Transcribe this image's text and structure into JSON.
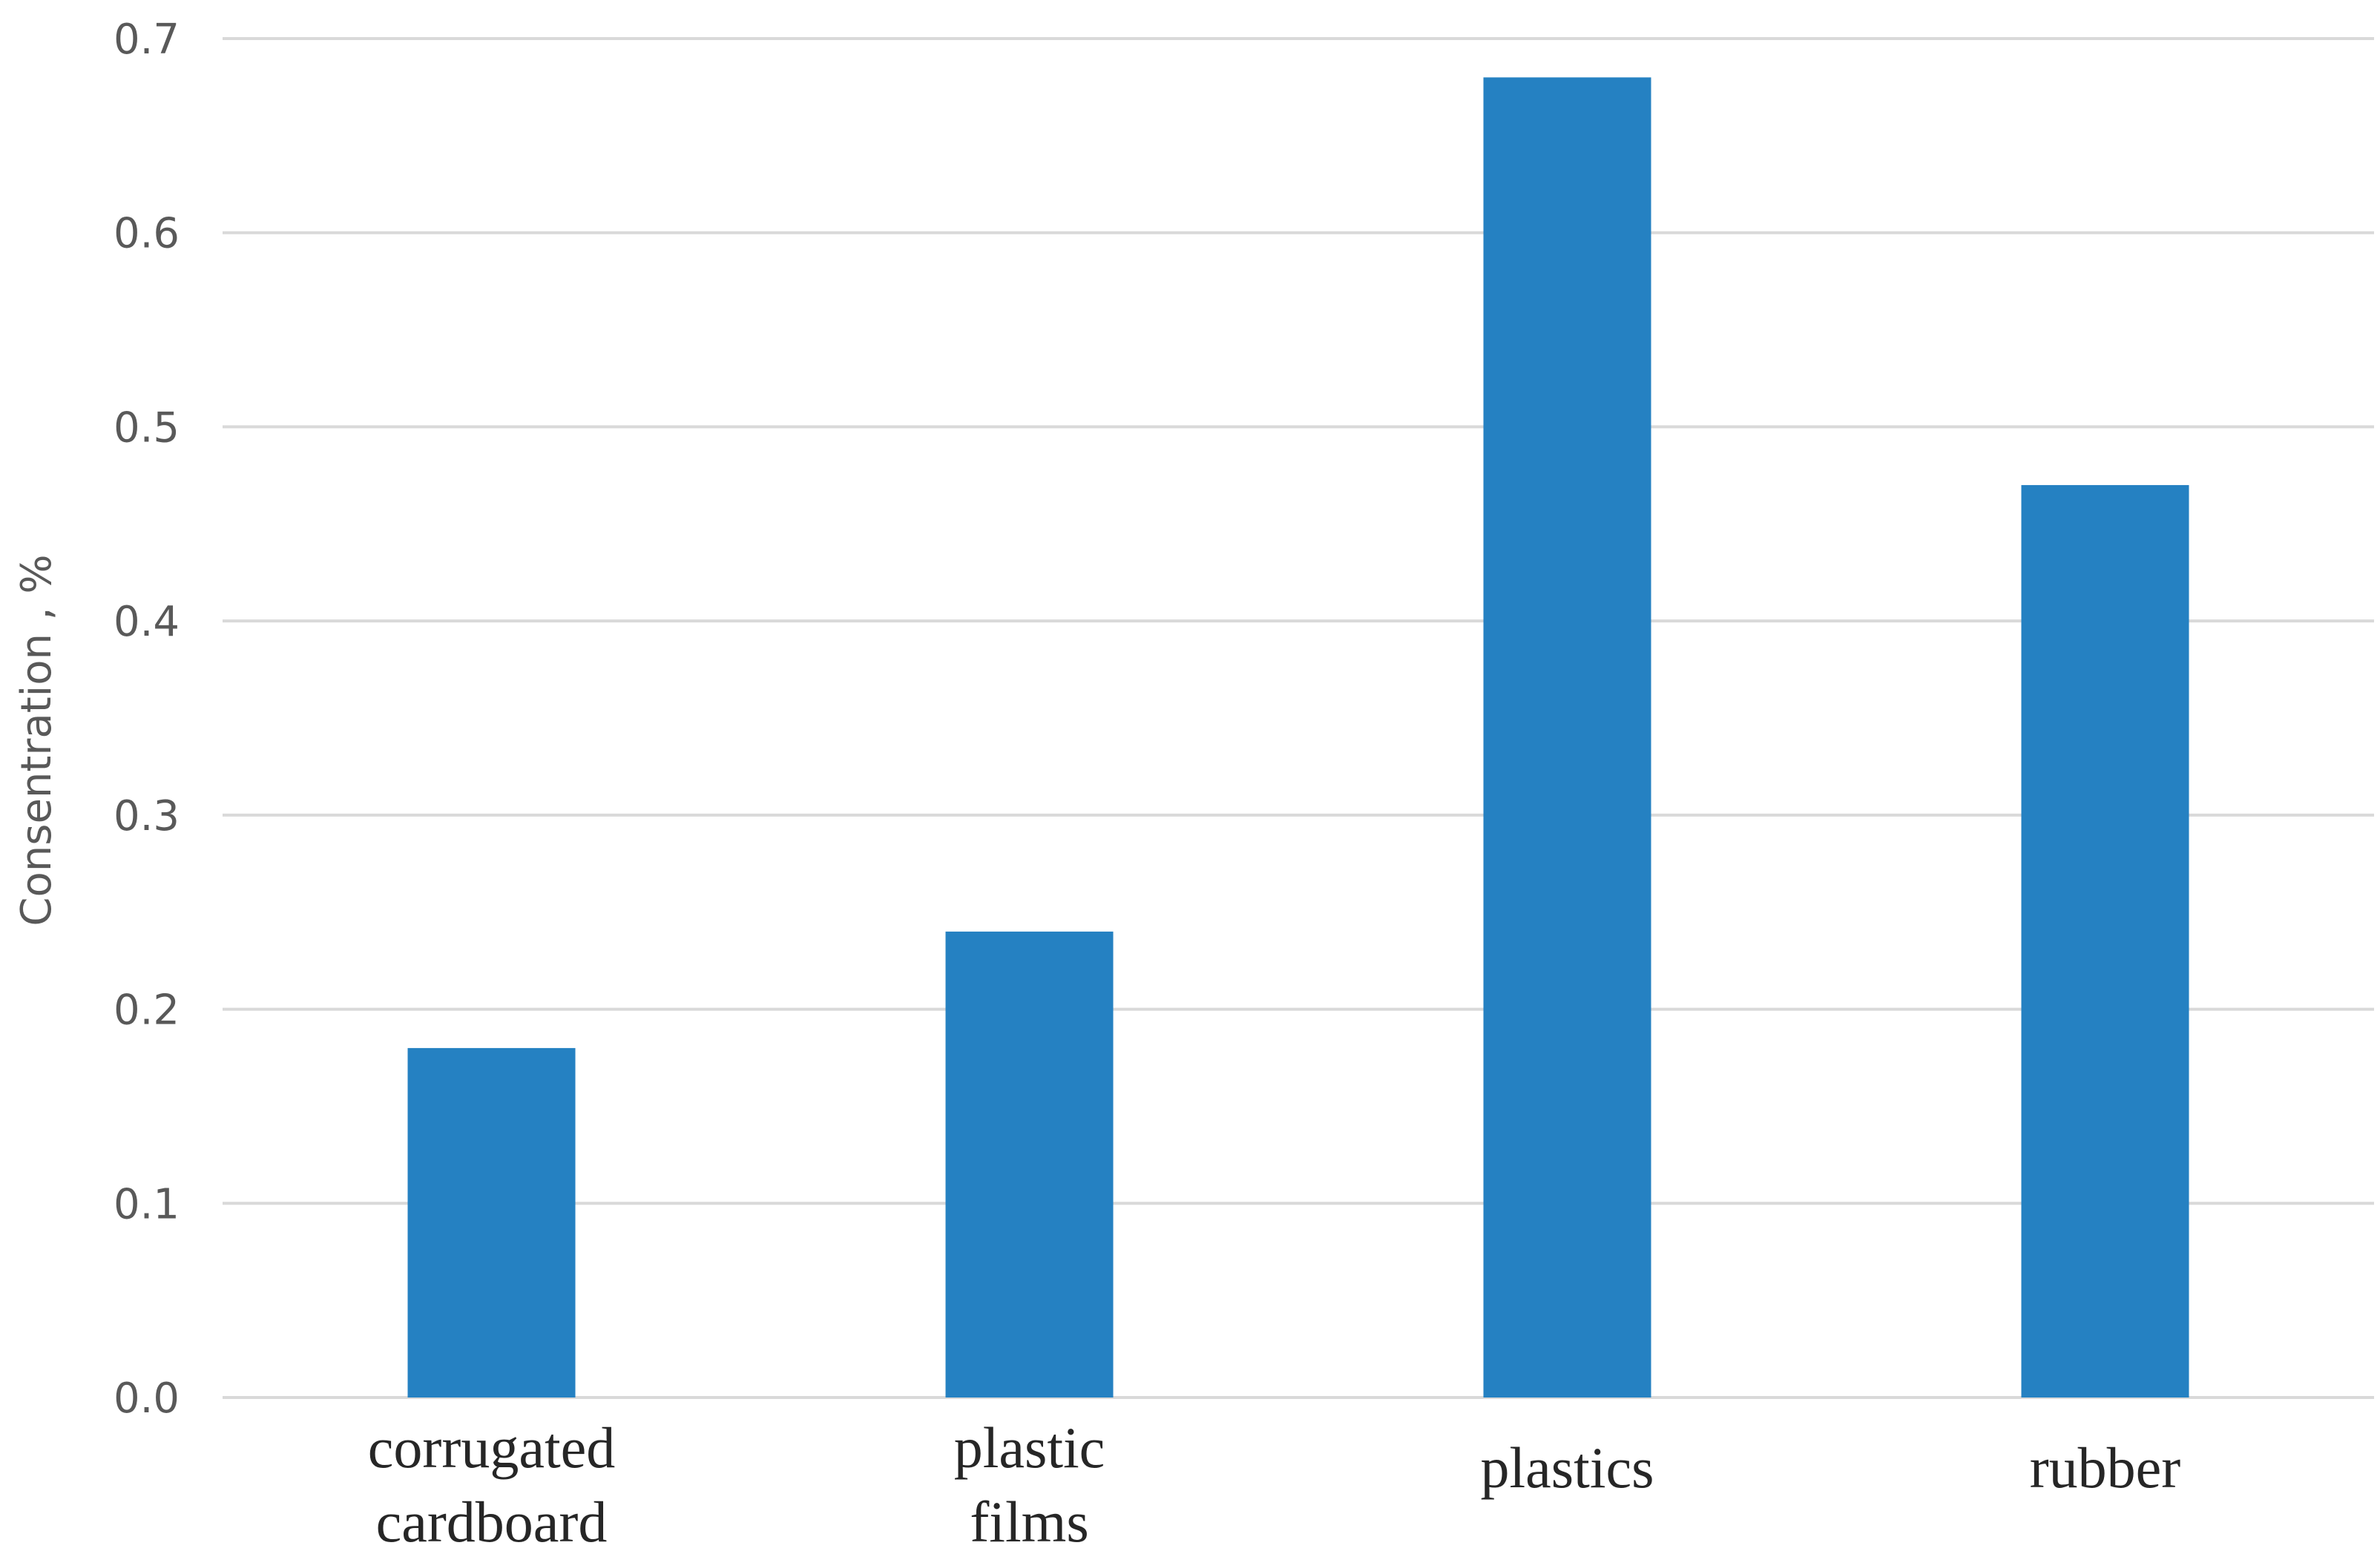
{
  "chart_data": {
    "type": "bar",
    "categories": [
      [
        "corrugated",
        "cardboard"
      ],
      [
        "plastic",
        "films"
      ],
      [
        "plastics"
      ],
      [
        "rubber"
      ]
    ],
    "values": [
      0.18,
      0.24,
      0.68,
      0.47
    ],
    "ylabel": "Consentration , %",
    "xlabel": "",
    "title": "",
    "ylim": [
      0,
      0.7
    ],
    "yticks": [
      "0.0",
      "0.1",
      "0.2",
      "0.3",
      "0.4",
      "0.5",
      "0.6",
      "0.7"
    ],
    "grid": true,
    "legend": "none",
    "colors": {
      "bar": "#2581C2",
      "grid": "#D9D9D9"
    }
  }
}
